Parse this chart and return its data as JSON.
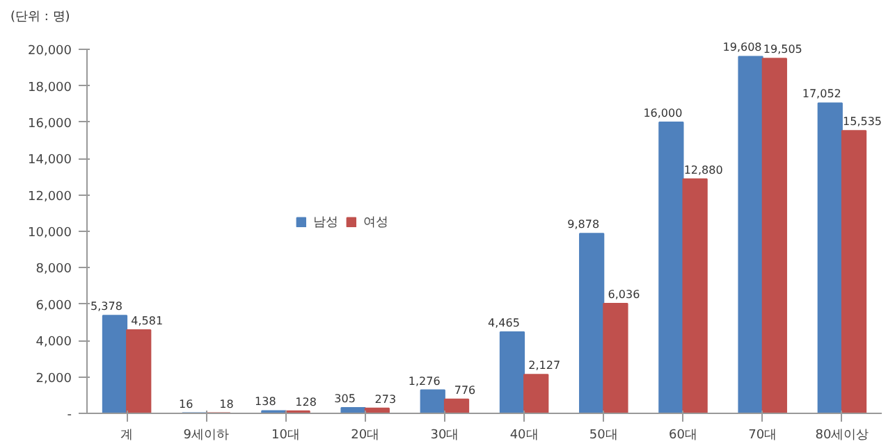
{
  "chart_data": {
    "type": "bar",
    "annotations": [
      "(단위 : 명)"
    ],
    "categories": [
      "계",
      "9세이하",
      "10대",
      "20대",
      "30대",
      "40대",
      "50대",
      "60대",
      "70대",
      "80세이상"
    ],
    "series": [
      {
        "name": "남성",
        "color": "#4f81bd",
        "values": [
          5378,
          16,
          138,
          305,
          1276,
          4465,
          9878,
          16000,
          19608,
          17052
        ],
        "value_labels": [
          "5,378",
          "16",
          "138",
          "305",
          "1,276",
          "4,465",
          "9,878",
          "16,000",
          "19,608",
          "17,052"
        ]
      },
      {
        "name": "여성",
        "color": "#c0504d",
        "values": [
          4581,
          18,
          128,
          273,
          776,
          2127,
          6036,
          12880,
          19505,
          15535
        ],
        "value_labels": [
          "4,581",
          "18",
          "128",
          "273",
          "776",
          "2,127",
          "6,036",
          "12,880",
          "19,505",
          "15,535"
        ]
      }
    ],
    "ylim": [
      0,
      20000
    ],
    "yticks": [
      {
        "value": 0,
        "label": "-"
      },
      {
        "value": 2000,
        "label": "2,000"
      },
      {
        "value": 4000,
        "label": "4,000"
      },
      {
        "value": 6000,
        "label": "6,000"
      },
      {
        "value": 8000,
        "label": "8,000"
      },
      {
        "value": 10000,
        "label": "10,000"
      },
      {
        "value": 12000,
        "label": "12,000"
      },
      {
        "value": 14000,
        "label": "14,000"
      },
      {
        "value": 16000,
        "label": "16,000"
      },
      {
        "value": 18000,
        "label": "18,000"
      },
      {
        "value": 20000,
        "label": "20,000"
      }
    ],
    "legend": "left",
    "grid": false
  }
}
